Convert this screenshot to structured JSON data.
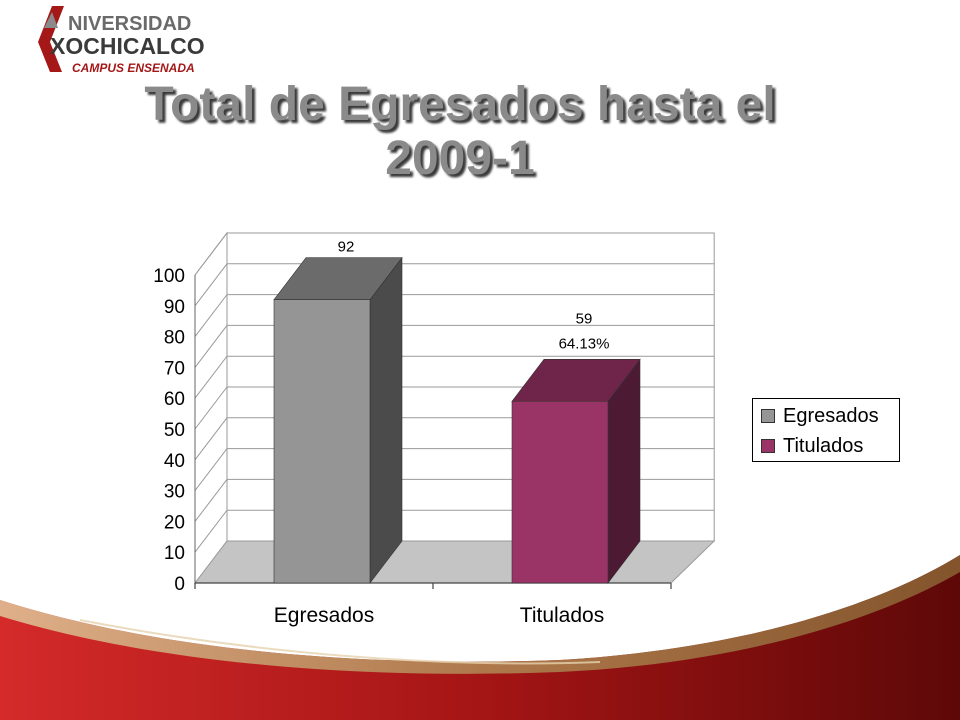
{
  "logo": {
    "line1": "NIVERSIDAD",
    "line2": "XOCHICALCO",
    "line3": "CAMPUS ENSENADA"
  },
  "title": {
    "line1": "Total de Egresados hasta el",
    "line2": "2009-1"
  },
  "chart_data": {
    "type": "bar",
    "title": "Total de Egresados hasta el 2009-1",
    "categories": [
      "Egresados",
      "Titulados"
    ],
    "series": [
      {
        "name": "Egresados",
        "values": [
          92,
          null
        ],
        "color": "#959595",
        "data_label": "92"
      },
      {
        "name": "Titulados",
        "values": [
          null,
          59
        ],
        "color": "#9a3366",
        "data_label": "59",
        "data_label_2": "64.13%"
      }
    ],
    "yticks": [
      "0",
      "10",
      "20",
      "30",
      "40",
      "50",
      "60",
      "70",
      "80",
      "90",
      "100"
    ],
    "ylim": [
      0,
      100
    ],
    "grid": true,
    "legend_position": "right",
    "style": "3d-column"
  },
  "colors": {
    "title": "#8a8a8a",
    "egresados": "#959595",
    "titulados": "#9a3366",
    "swoosh_red": "#b01c1c",
    "swoosh_gold": "#a88457"
  }
}
